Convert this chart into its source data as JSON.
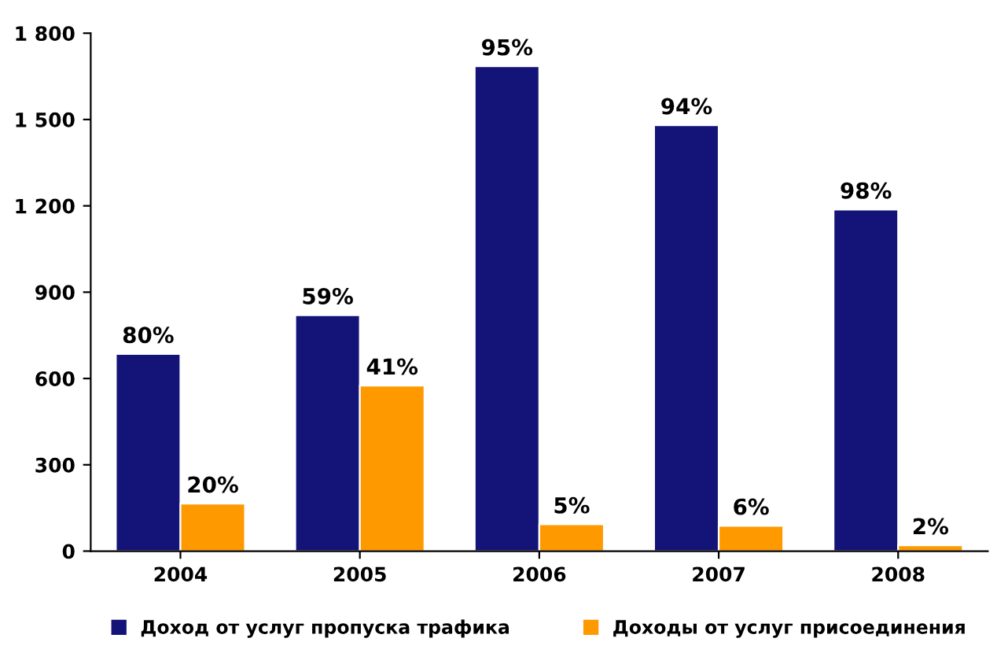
{
  "chart_data": {
    "type": "bar",
    "categories": [
      "2004",
      "2005",
      "2006",
      "2007",
      "2008"
    ],
    "series": [
      {
        "name": "Доход от услуг пропуска трафика",
        "color": "#141478",
        "values": [
          685,
          820,
          1685,
          1480,
          1187
        ]
      },
      {
        "name": "Доходы от услуг присоединения",
        "color": "#ff9900",
        "values": [
          165,
          575,
          93,
          88,
          20
        ]
      }
    ],
    "annotations": [
      {
        "text": "80%",
        "x": "2004",
        "y": 685
      },
      {
        "text": "59%",
        "x": "2005",
        "y": 820
      },
      {
        "text": "95%",
        "x": "2006",
        "y": 1685
      },
      {
        "text": "94%",
        "x": "2007",
        "y": 1480
      },
      {
        "text": "98%",
        "x": "2008",
        "y": 1187
      },
      {
        "text": "20%",
        "x": "2004",
        "y": 165
      },
      {
        "text": "41%",
        "x": "2005",
        "y": 575
      },
      {
        "text": "5%",
        "x": "2006",
        "y": 93
      },
      {
        "text": "6%",
        "x": "2007",
        "y": 88
      },
      {
        "text": "2%",
        "x": "2008",
        "y": 20
      }
    ],
    "ylim": [
      0,
      1800
    ],
    "yticks": [
      0,
      300,
      600,
      900,
      {
        "value": 1200,
        "label": "1 200"
      },
      {
        "value": 1500,
        "label": "1 500"
      },
      {
        "value": 1800,
        "label": "1 800"
      }
    ],
    "grid": false,
    "legend": "bottom"
  }
}
